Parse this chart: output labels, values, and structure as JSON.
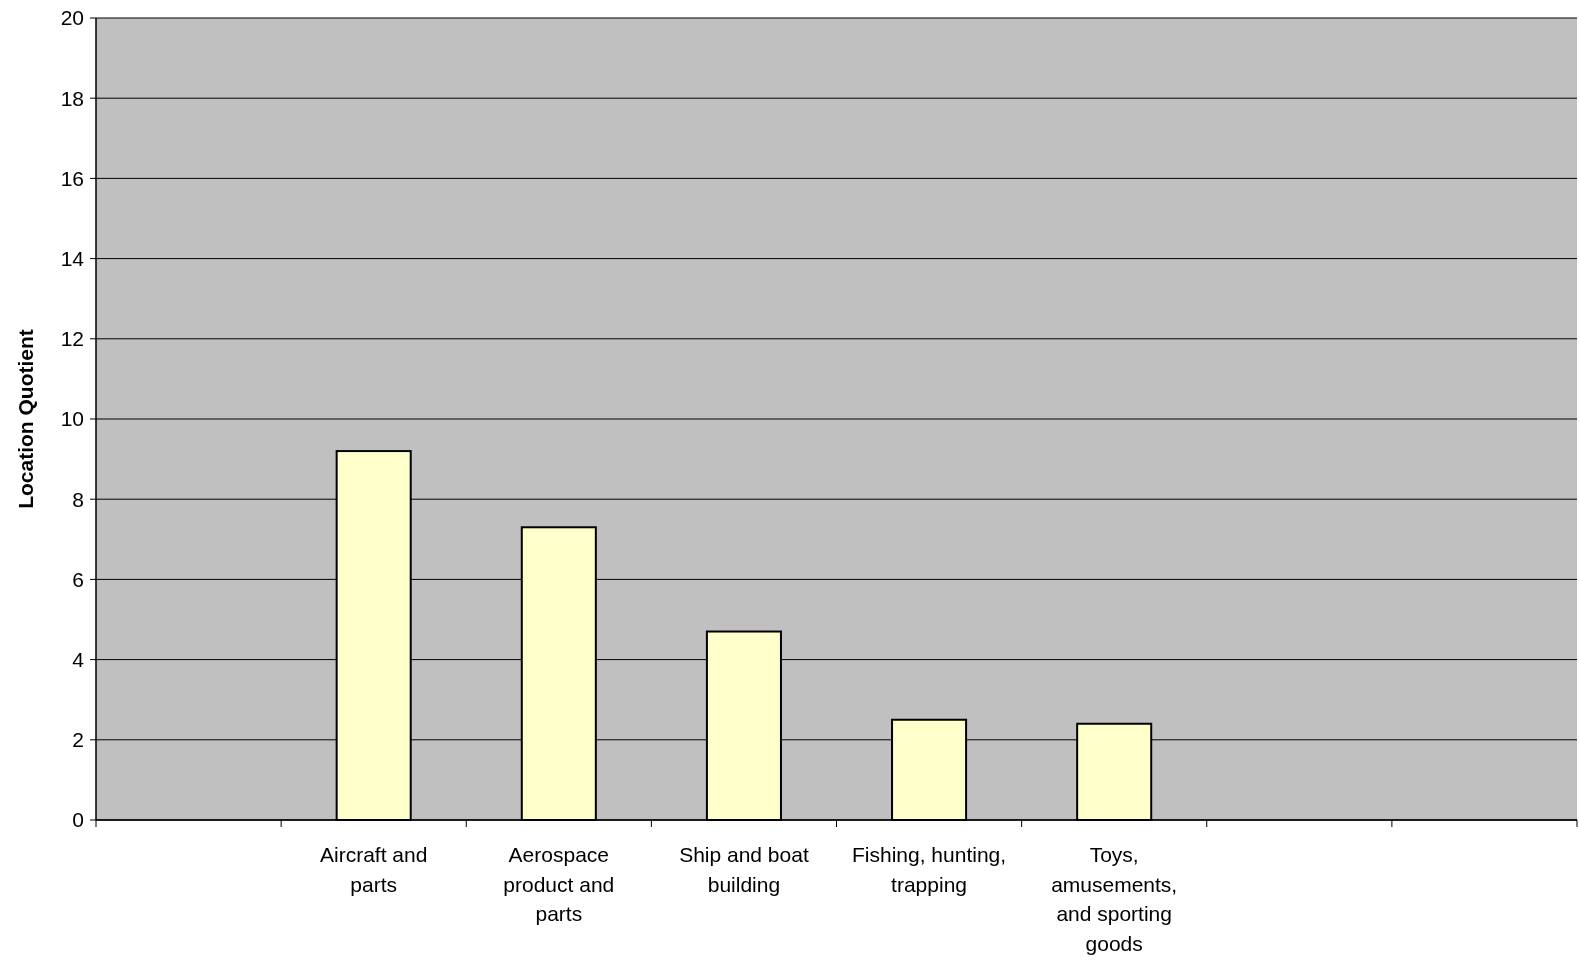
{
  "chart_data": {
    "type": "bar",
    "ylabel": "Location Quotient",
    "categories": [
      null,
      "Aircraft and parts",
      "Aerospace product and parts",
      "Ship and boat building",
      "Fishing, hunting, trapping",
      "Toys, amusements, and sporting goods",
      null,
      null
    ],
    "values": [
      null,
      9.2,
      7.3,
      4.7,
      2.5,
      2.4,
      null,
      null
    ],
    "color": "#ffffcc",
    "ylim": [
      0,
      20
    ],
    "yticks": [
      0,
      2,
      4,
      6,
      8,
      10,
      12,
      14,
      16,
      18,
      20
    ],
    "grid": "y"
  }
}
